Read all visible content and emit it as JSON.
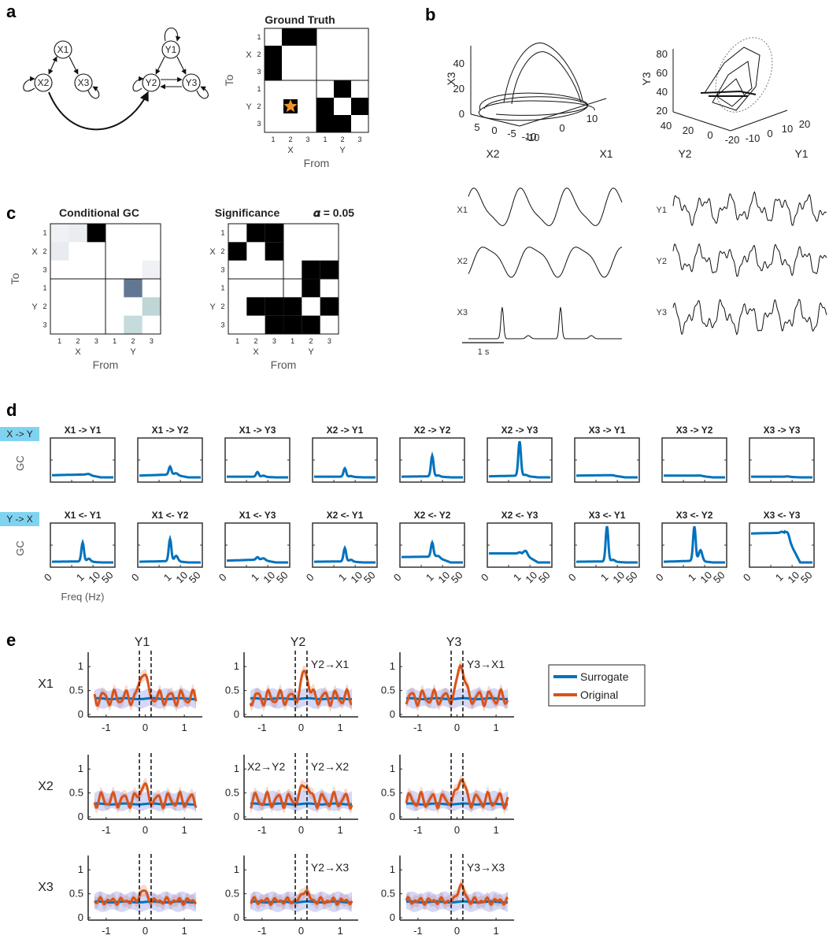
{
  "panels": {
    "a": "a",
    "b": "b",
    "c": "c",
    "d": "d",
    "e": "e"
  },
  "a": {
    "nodes": [
      "X1",
      "X2",
      "X3",
      "Y1",
      "Y2",
      "Y3"
    ],
    "gt_title": "Ground Truth",
    "gt_to": "To",
    "gt_from": "From",
    "gt_groups": [
      "X",
      "Y"
    ],
    "gt_ticks": [
      "1",
      "2",
      "3"
    ],
    "gt_matrix": [
      [
        0,
        1,
        1,
        0,
        0,
        0
      ],
      [
        1,
        0,
        0,
        0,
        0,
        0
      ],
      [
        1,
        0,
        0,
        0,
        0,
        0
      ],
      [
        0,
        0,
        0,
        0,
        1,
        0
      ],
      [
        0,
        0,
        0,
        1,
        0,
        1
      ],
      [
        0,
        0,
        0,
        1,
        1,
        0
      ]
    ],
    "star_color": "#f0922b"
  },
  "b": {
    "x_axes": {
      "xlabel_left": "X2",
      "xlabel_right": "X1",
      "zlabel": "X3",
      "ticks_x2": [
        "5",
        "0",
        "-5",
        "-10"
      ],
      "ticks_x1": [
        "10",
        "0",
        "-10"
      ],
      "ticks_z": [
        "0",
        "20",
        "40"
      ]
    },
    "y_axes": {
      "xlabel_left": "Y2",
      "xlabel_right": "Y1",
      "zlabel": "Y3",
      "ticks_y2": [
        "40",
        "20",
        "0",
        "-20"
      ],
      "ticks_y1": [
        "20",
        "10",
        "0",
        "-10"
      ],
      "ticks_z": [
        "20",
        "40",
        "60",
        "80"
      ]
    },
    "x_traces": [
      "X1",
      "X2",
      "X3"
    ],
    "y_traces": [
      "Y1",
      "Y2",
      "Y3"
    ],
    "scale": "1 s"
  },
  "c": {
    "title_gc": "Conditional GC",
    "title_sig": "Significance",
    "alpha": "𝜶 = 0.05",
    "to": "To",
    "from": "From",
    "groups": [
      "X",
      "Y"
    ],
    "ticks": [
      "1",
      "2",
      "3"
    ],
    "gc_matrix": [
      [
        0.03,
        0.05,
        1,
        0,
        0,
        0
      ],
      [
        0.06,
        0,
        0,
        0,
        0,
        0
      ],
      [
        0,
        0,
        0,
        0,
        0,
        0.03
      ],
      [
        0,
        0,
        0,
        0,
        0.7,
        0
      ],
      [
        0,
        0,
        0,
        0,
        0,
        0.28
      ],
      [
        0,
        0,
        0,
        0,
        0.22,
        0
      ]
    ],
    "sig_matrix": [
      [
        0,
        1,
        1,
        0,
        0,
        0
      ],
      [
        1,
        0,
        1,
        0,
        0,
        0
      ],
      [
        0,
        0,
        0,
        0,
        1,
        1
      ],
      [
        0,
        0,
        0,
        0,
        1,
        0
      ],
      [
        0,
        1,
        1,
        1,
        0,
        1
      ],
      [
        0,
        0,
        1,
        1,
        1,
        0
      ]
    ],
    "gc_color": "#2e4a6e"
  },
  "d": {
    "tags": [
      "X -> Y",
      "Y -> X"
    ],
    "tag_color": "#7fd3f0",
    "ylabel": "GC",
    "xlabel": "Freq (Hz)",
    "xticks": [
      "0",
      "1",
      "10",
      "50"
    ],
    "titles_xy": [
      "X1 -> Y1",
      "X1 -> Y2",
      "X1 -> Y3",
      "X2 -> Y1",
      "X2 -> Y2",
      "X2 -> Y3",
      "X3 -> Y1",
      "X3 -> Y2",
      "X3 -> Y3"
    ],
    "titles_yx": [
      "X1 <- Y1",
      "X1 <- Y2",
      "X1 <- Y3",
      "X2 <- Y1",
      "X2 <- Y2",
      "X2 <- Y3",
      "X3 <- Y1",
      "X3 <- Y2",
      "X3 <- Y3"
    ],
    "line_color": "#0072bd",
    "curves_xy": [
      [
        0.06,
        0.08,
        0.08,
        0.03,
        0,
        0
      ],
      [
        0.05,
        0.08,
        0.3,
        0.05,
        0,
        0
      ],
      [
        0.02,
        0.02,
        0.15,
        0.03,
        0,
        0
      ],
      [
        0.02,
        0.02,
        0.25,
        0.02,
        0,
        0
      ],
      [
        0.02,
        0.03,
        0.6,
        0.03,
        0,
        0
      ],
      [
        0.03,
        0.05,
        1.0,
        0.03,
        0,
        0
      ],
      [
        0.05,
        0.06,
        0.03,
        0.01,
        0,
        0
      ],
      [
        0.05,
        0.05,
        0.03,
        0.01,
        0,
        0
      ],
      [
        0.02,
        0.02,
        0.02,
        0.01,
        0,
        0
      ]
    ],
    "curves_yx": [
      [
        0.02,
        0.03,
        0.55,
        0.08,
        0,
        0
      ],
      [
        0.02,
        0.04,
        0.65,
        0.15,
        0,
        0
      ],
      [
        0.05,
        0.08,
        0.15,
        0.05,
        0,
        0
      ],
      [
        0.02,
        0.03,
        0.4,
        0.05,
        0,
        0
      ],
      [
        0.15,
        0.16,
        0.55,
        0.05,
        0,
        0
      ],
      [
        0.25,
        0.25,
        0.28,
        0.12,
        0,
        0
      ],
      [
        0.02,
        0.03,
        1.0,
        0.05,
        0,
        0
      ],
      [
        0.02,
        0.05,
        1.0,
        0.3,
        0,
        0
      ],
      [
        0.8,
        0.82,
        0.85,
        0.15,
        0,
        0
      ]
    ]
  },
  "e": {
    "cols": [
      "Y1",
      "Y2",
      "Y3"
    ],
    "rows": [
      "X1",
      "X2",
      "X3"
    ],
    "legend": [
      "Surrogate",
      "Original"
    ],
    "surrogate_color": "#0072bd",
    "original_color": "#d95319",
    "yticks": [
      "0",
      "0.5",
      "1"
    ],
    "xticks": [
      "-1",
      "0",
      "1"
    ],
    "annotations": [
      [
        "",
        "Y2→X1",
        "Y3→X1"
      ],
      [
        "",
        "Y2→X2",
        ""
      ],
      [
        "",
        "Y2→X3",
        "Y3→X3"
      ]
    ],
    "left_annotation": "X2→Y2",
    "peaks": [
      [
        0.95,
        0.95,
        1.1
      ],
      [
        0.7,
        0.75,
        0.85
      ],
      [
        0.6,
        0.6,
        0.7
      ]
    ]
  }
}
